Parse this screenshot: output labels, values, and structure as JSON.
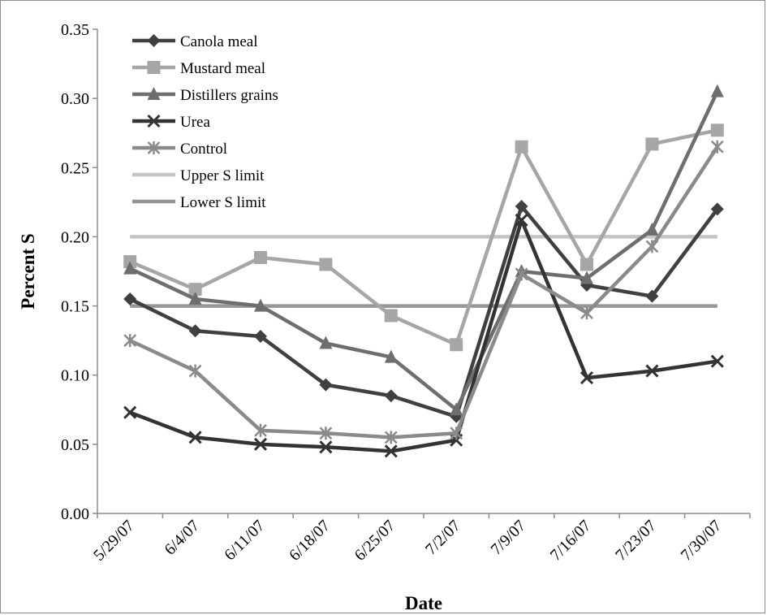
{
  "chart_data": {
    "type": "line",
    "title": "",
    "xlabel": "Date",
    "ylabel": "Percent S",
    "ylim": [
      0,
      0.35
    ],
    "y_ticks": [
      "0.00",
      "0.05",
      "0.10",
      "0.15",
      "0.20",
      "0.25",
      "0.30",
      "0.35"
    ],
    "categories": [
      "5/29/07",
      "6/4/07",
      "6/11/07",
      "6/18/07",
      "6/25/07",
      "7/2/07",
      "7/9/07",
      "7/16/07",
      "7/23/07",
      "7/30/07"
    ],
    "grid": false,
    "legend_position": "top-left",
    "series": [
      {
        "name": "Canola meal",
        "marker": "diamond",
        "color": "#404040",
        "values": [
          0.155,
          0.132,
          0.128,
          0.093,
          0.085,
          0.07,
          0.222,
          0.165,
          0.157,
          0.22
        ]
      },
      {
        "name": "Mustard meal",
        "marker": "square",
        "color": "#a6a6a6",
        "values": [
          0.182,
          0.162,
          0.185,
          0.18,
          0.143,
          0.122,
          0.265,
          0.18,
          0.267,
          0.277
        ]
      },
      {
        "name": "Distillers grains",
        "marker": "triangle",
        "color": "#6e6e6e",
        "values": [
          0.177,
          0.155,
          0.15,
          0.123,
          0.113,
          0.075,
          0.175,
          0.17,
          0.205,
          0.305
        ]
      },
      {
        "name": "Urea",
        "marker": "x",
        "color": "#333333",
        "values": [
          0.073,
          0.055,
          0.05,
          0.048,
          0.045,
          0.053,
          0.212,
          0.098,
          0.103,
          0.11
        ]
      },
      {
        "name": "Control",
        "marker": "star",
        "color": "#8a8a8a",
        "values": [
          0.125,
          0.103,
          0.06,
          0.058,
          0.055,
          0.058,
          0.173,
          0.145,
          0.193,
          0.265
        ]
      },
      {
        "name": "Upper S limit",
        "marker": "none",
        "color": "#c4c4c4",
        "values": [
          0.2,
          0.2,
          0.2,
          0.2,
          0.2,
          0.2,
          0.2,
          0.2,
          0.2,
          0.2
        ]
      },
      {
        "name": "Lower S limit",
        "marker": "none",
        "color": "#969696",
        "values": [
          0.15,
          0.15,
          0.15,
          0.15,
          0.15,
          0.15,
          0.15,
          0.15,
          0.15,
          0.15
        ]
      }
    ]
  }
}
